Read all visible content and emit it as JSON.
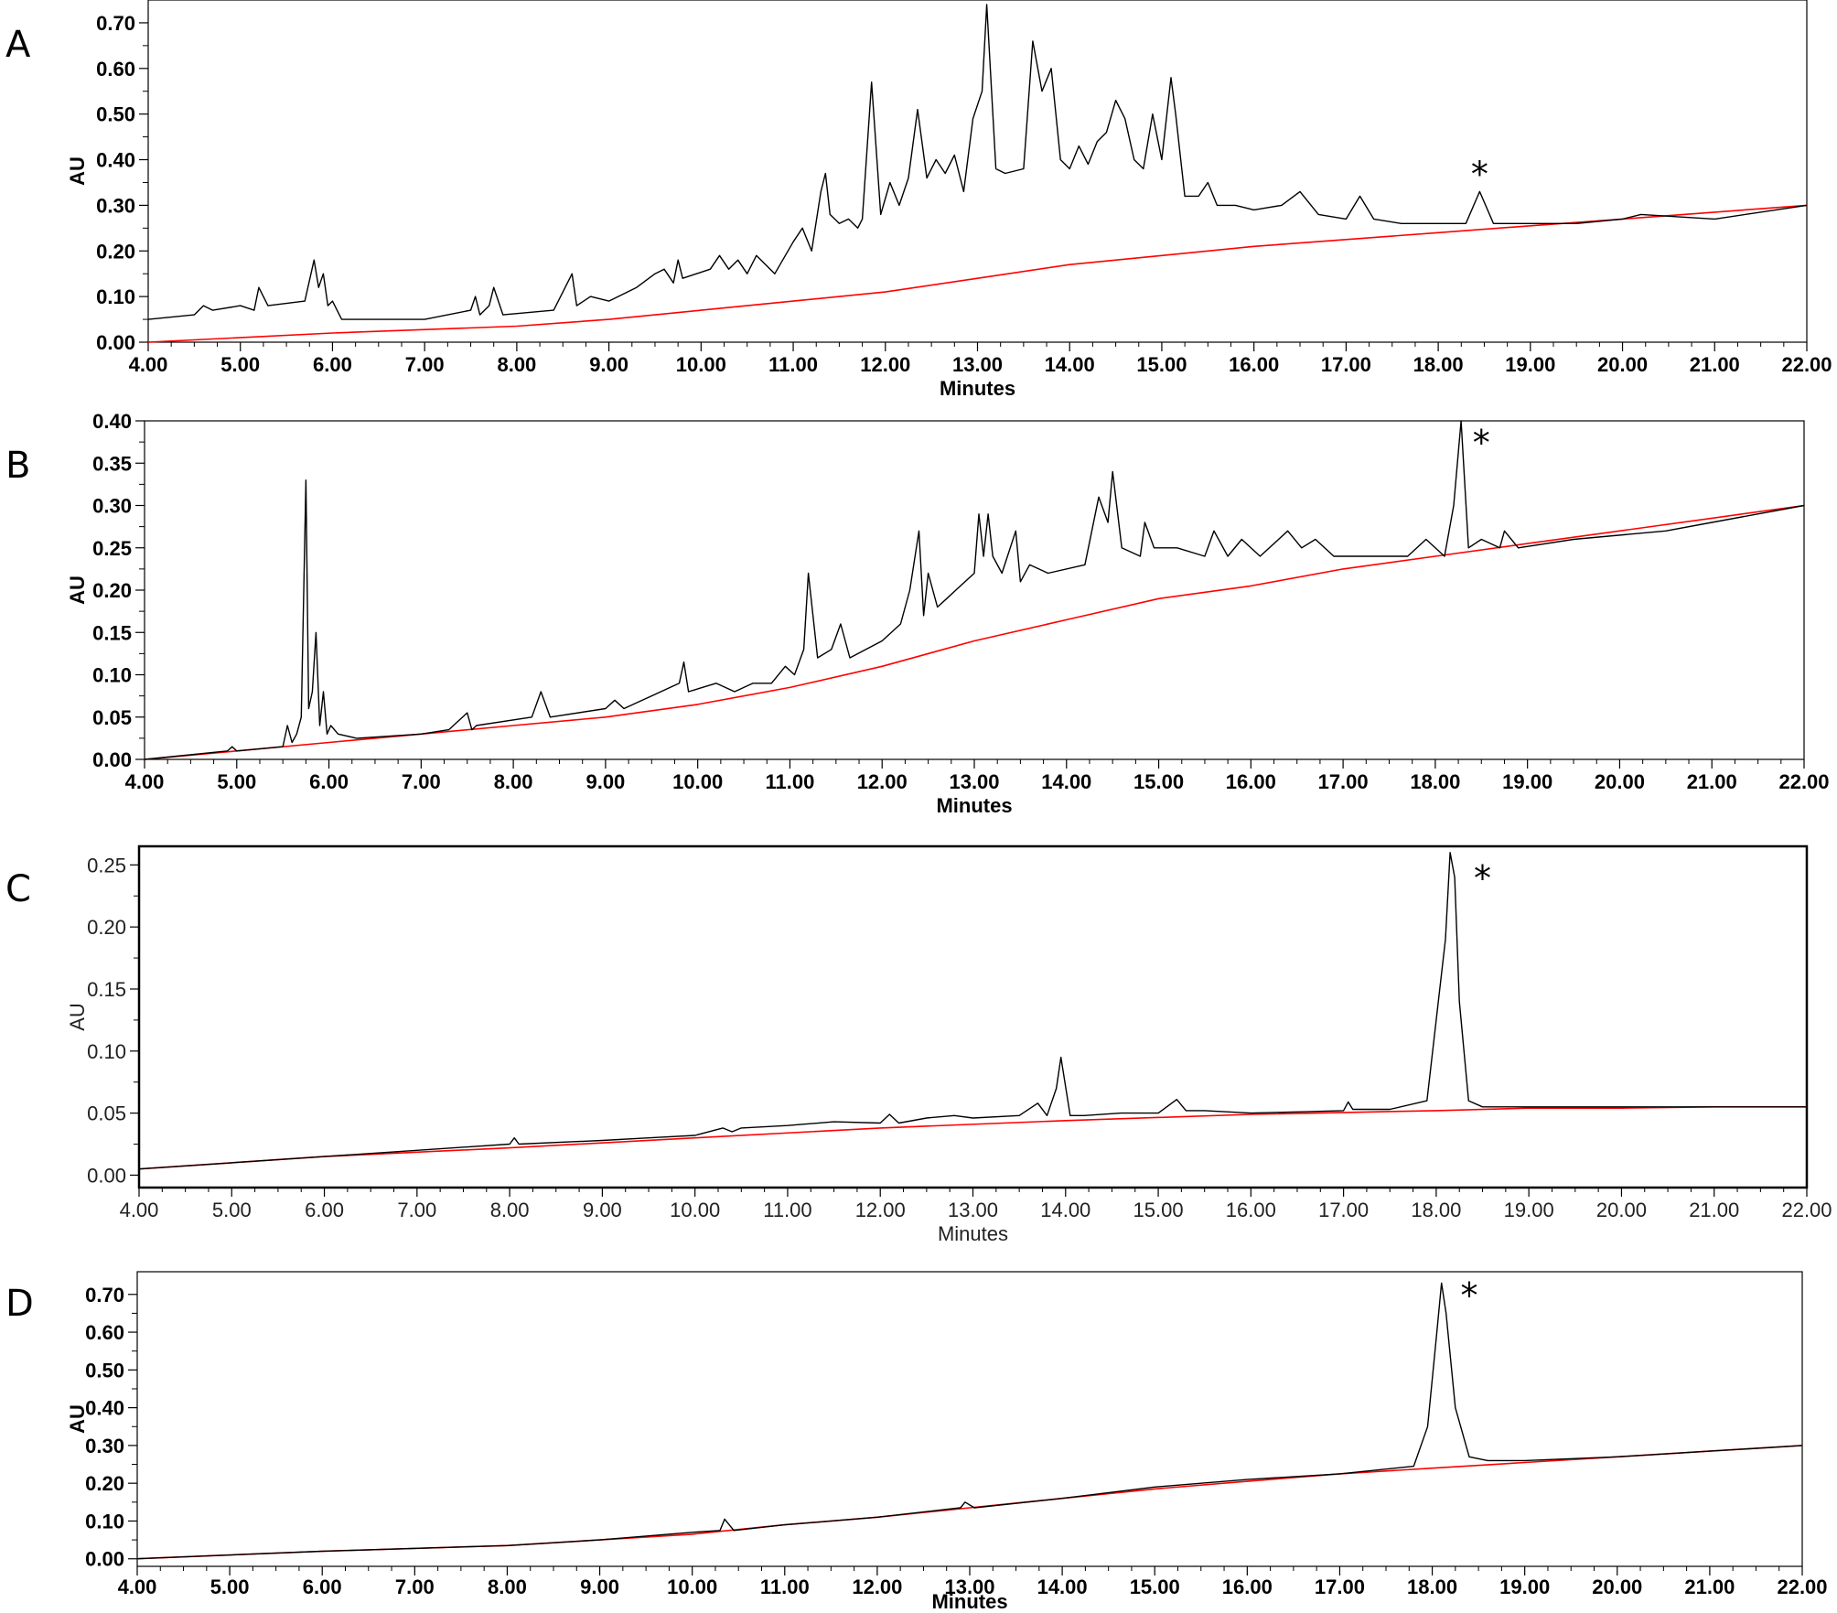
{
  "chart_data": [
    {
      "type": "line",
      "panel": "A",
      "xlabel": "Minutes",
      "ylabel": "AU",
      "xlim": [
        4.0,
        22.0
      ],
      "ylim": [
        0.0,
        0.75
      ],
      "xticks": [
        "4.00",
        "5.00",
        "6.00",
        "7.00",
        "8.00",
        "9.00",
        "10.00",
        "11.00",
        "12.00",
        "13.00",
        "14.00",
        "15.00",
        "16.00",
        "17.00",
        "18.00",
        "19.00",
        "20.00",
        "21.00",
        "22.00"
      ],
      "yticks": [
        "0.00",
        "0.10",
        "0.20",
        "0.30",
        "0.40",
        "0.50",
        "0.60",
        "0.70"
      ],
      "annotation": {
        "text": "*",
        "x": 18.45,
        "y": 0.37
      },
      "colors": {
        "trace": "#000000",
        "baseline": "#ff0000"
      },
      "series": [
        {
          "x": [
            4.0,
            4.5,
            4.6,
            4.7,
            5.0,
            5.15,
            5.2,
            5.3,
            5.7,
            5.8,
            5.85,
            5.9,
            5.95,
            6.0,
            6.1,
            6.2,
            7.0,
            7.5,
            7.55,
            7.6,
            7.7,
            7.75,
            7.85,
            8.4,
            8.5,
            8.6,
            8.65,
            8.8,
            9.0,
            9.3,
            9.5,
            9.6,
            9.7,
            9.75,
            9.8,
            10.1,
            10.2,
            10.3,
            10.4,
            10.5,
            10.6,
            10.8,
            11.0,
            11.1,
            11.2,
            11.3,
            11.35,
            11.4,
            11.5,
            11.6,
            11.7,
            11.75,
            11.85,
            11.95,
            12.05,
            12.15,
            12.25,
            12.35,
            12.45,
            12.55,
            12.65,
            12.75,
            12.85,
            12.95,
            13.05,
            13.1,
            13.2,
            13.3,
            13.5,
            13.6,
            13.7,
            13.8,
            13.9,
            14.0,
            14.1,
            14.2,
            14.3,
            14.4,
            14.5,
            14.6,
            14.7,
            14.8,
            14.9,
            15.0,
            15.1,
            15.15,
            15.25,
            15.4,
            15.5,
            15.6,
            15.8,
            16.0,
            16.3,
            16.5,
            16.7,
            17.0,
            17.15,
            17.3,
            17.6,
            18.0,
            18.3,
            18.45,
            18.6,
            18.8,
            19.5,
            20.0,
            20.2,
            21.0,
            22.0
          ],
          "y": [
            0.05,
            0.06,
            0.08,
            0.07,
            0.08,
            0.07,
            0.12,
            0.08,
            0.09,
            0.18,
            0.12,
            0.15,
            0.08,
            0.09,
            0.05,
            0.05,
            0.05,
            0.07,
            0.1,
            0.06,
            0.08,
            0.12,
            0.06,
            0.07,
            0.11,
            0.15,
            0.08,
            0.1,
            0.09,
            0.12,
            0.15,
            0.16,
            0.13,
            0.18,
            0.14,
            0.16,
            0.19,
            0.16,
            0.18,
            0.15,
            0.19,
            0.15,
            0.22,
            0.25,
            0.2,
            0.33,
            0.37,
            0.28,
            0.26,
            0.27,
            0.25,
            0.27,
            0.57,
            0.28,
            0.35,
            0.3,
            0.36,
            0.51,
            0.36,
            0.4,
            0.37,
            0.41,
            0.33,
            0.49,
            0.55,
            0.74,
            0.38,
            0.37,
            0.38,
            0.66,
            0.55,
            0.6,
            0.4,
            0.38,
            0.43,
            0.39,
            0.44,
            0.46,
            0.53,
            0.49,
            0.4,
            0.38,
            0.5,
            0.4,
            0.58,
            0.5,
            0.32,
            0.32,
            0.35,
            0.3,
            0.3,
            0.29,
            0.3,
            0.33,
            0.28,
            0.27,
            0.32,
            0.27,
            0.26,
            0.26,
            0.26,
            0.33,
            0.26,
            0.26,
            0.26,
            0.27,
            0.28,
            0.27,
            0.3
          ]
        },
        {
          "x": [
            4.0,
            6.0,
            8.0,
            9.0,
            10.0,
            11.0,
            12.0,
            13.0,
            14.0,
            15.0,
            16.0,
            17.0,
            18.0,
            19.0,
            20.0,
            21.0,
            22.0
          ],
          "y": [
            0.0,
            0.02,
            0.035,
            0.05,
            0.07,
            0.09,
            0.11,
            0.14,
            0.17,
            0.19,
            0.21,
            0.225,
            0.24,
            0.255,
            0.27,
            0.285,
            0.3
          ]
        }
      ]
    },
    {
      "type": "line",
      "panel": "B",
      "xlabel": "Minutes",
      "ylabel": "AU",
      "xlim": [
        4.0,
        22.0
      ],
      "ylim": [
        0.0,
        0.4
      ],
      "xticks": [
        "4.00",
        "5.00",
        "6.00",
        "7.00",
        "8.00",
        "9.00",
        "10.00",
        "11.00",
        "12.00",
        "13.00",
        "14.00",
        "15.00",
        "16.00",
        "17.00",
        "18.00",
        "19.00",
        "20.00",
        "21.00",
        "22.00"
      ],
      "yticks": [
        "0.00",
        "0.05",
        "0.10",
        "0.15",
        "0.20",
        "0.25",
        "0.30",
        "0.35",
        "0.40"
      ],
      "annotation": {
        "text": "*",
        "x": 18.5,
        "y": 0.375
      },
      "colors": {
        "trace": "#000000",
        "baseline": "#ff0000"
      },
      "series": [
        {
          "x": [
            4.0,
            4.9,
            4.95,
            5.0,
            5.5,
            5.55,
            5.6,
            5.65,
            5.7,
            5.75,
            5.78,
            5.82,
            5.86,
            5.9,
            5.94,
            5.98,
            6.02,
            6.1,
            6.3,
            7.0,
            7.3,
            7.5,
            7.55,
            7.6,
            8.2,
            8.3,
            8.4,
            9.0,
            9.1,
            9.2,
            9.4,
            9.8,
            9.85,
            9.9,
            10.2,
            10.4,
            10.6,
            10.8,
            10.95,
            11.05,
            11.15,
            11.2,
            11.3,
            11.45,
            11.55,
            11.65,
            12.0,
            12.2,
            12.3,
            12.4,
            12.45,
            12.5,
            12.6,
            12.7,
            12.8,
            13.0,
            13.05,
            13.1,
            13.15,
            13.2,
            13.3,
            13.45,
            13.5,
            13.6,
            13.8,
            14.2,
            14.35,
            14.45,
            14.5,
            14.6,
            14.8,
            14.85,
            14.95,
            15.2,
            15.5,
            15.6,
            15.75,
            15.9,
            16.1,
            16.3,
            16.4,
            16.55,
            16.7,
            16.9,
            17.3,
            17.7,
            17.9,
            18.1,
            18.2,
            18.28,
            18.36,
            18.5,
            18.7,
            18.75,
            18.9,
            19.5,
            20.5,
            21.0,
            22.0
          ],
          "y": [
            0.0,
            0.01,
            0.015,
            0.01,
            0.015,
            0.04,
            0.02,
            0.03,
            0.05,
            0.33,
            0.06,
            0.08,
            0.15,
            0.04,
            0.08,
            0.03,
            0.04,
            0.03,
            0.025,
            0.03,
            0.035,
            0.055,
            0.035,
            0.04,
            0.05,
            0.08,
            0.05,
            0.06,
            0.07,
            0.06,
            0.07,
            0.09,
            0.115,
            0.08,
            0.09,
            0.08,
            0.09,
            0.09,
            0.11,
            0.1,
            0.13,
            0.22,
            0.12,
            0.13,
            0.16,
            0.12,
            0.14,
            0.16,
            0.2,
            0.27,
            0.17,
            0.22,
            0.18,
            0.19,
            0.2,
            0.22,
            0.29,
            0.24,
            0.29,
            0.24,
            0.22,
            0.27,
            0.21,
            0.23,
            0.22,
            0.23,
            0.31,
            0.28,
            0.34,
            0.25,
            0.24,
            0.28,
            0.25,
            0.25,
            0.24,
            0.27,
            0.24,
            0.26,
            0.24,
            0.26,
            0.27,
            0.25,
            0.26,
            0.24,
            0.24,
            0.24,
            0.26,
            0.24,
            0.3,
            0.4,
            0.25,
            0.26,
            0.25,
            0.27,
            0.25,
            0.26,
            0.27,
            0.28,
            0.3
          ]
        },
        {
          "x": [
            4.0,
            5.0,
            6.0,
            7.0,
            8.0,
            9.0,
            10.0,
            11.0,
            12.0,
            13.0,
            14.0,
            15.0,
            16.0,
            17.0,
            18.0,
            19.0,
            20.0,
            21.0,
            22.0
          ],
          "y": [
            0.0,
            0.01,
            0.02,
            0.03,
            0.04,
            0.05,
            0.065,
            0.085,
            0.11,
            0.14,
            0.165,
            0.19,
            0.205,
            0.225,
            0.24,
            0.255,
            0.27,
            0.285,
            0.3
          ]
        }
      ]
    },
    {
      "type": "line",
      "panel": "C",
      "xlabel": "Minutes",
      "ylabel": "AU",
      "xlim": [
        4.0,
        22.0
      ],
      "ylim": [
        -0.01,
        0.265
      ],
      "xticks": [
        "4.00",
        "5.00",
        "6.00",
        "7.00",
        "8.00",
        "9.00",
        "10.00",
        "11.00",
        "12.00",
        "13.00",
        "14.00",
        "15.00",
        "16.00",
        "17.00",
        "18.00",
        "19.00",
        "20.00",
        "21.00",
        "22.00"
      ],
      "yticks": [
        "0.00",
        "0.05",
        "0.10",
        "0.15",
        "0.20",
        "0.25"
      ],
      "annotation": {
        "text": "*",
        "x": 18.5,
        "y": 0.24
      },
      "colors": {
        "trace": "#000000",
        "baseline": "#ff0000"
      },
      "series": [
        {
          "x": [
            4.0,
            5.0,
            6.0,
            7.0,
            8.0,
            8.05,
            8.1,
            9.0,
            9.5,
            10.0,
            10.3,
            10.4,
            10.5,
            11.0,
            11.5,
            12.0,
            12.1,
            12.2,
            12.5,
            12.8,
            13.0,
            13.5,
            13.7,
            13.8,
            13.9,
            13.95,
            14.05,
            14.2,
            14.6,
            15.0,
            15.2,
            15.3,
            15.5,
            16.0,
            16.5,
            17.0,
            17.05,
            17.1,
            17.5,
            17.9,
            18.1,
            18.15,
            18.2,
            18.25,
            18.35,
            18.5,
            19.0,
            20.0,
            21.0,
            22.0
          ],
          "y": [
            0.005,
            0.01,
            0.015,
            0.02,
            0.025,
            0.03,
            0.025,
            0.028,
            0.03,
            0.032,
            0.038,
            0.035,
            0.038,
            0.04,
            0.043,
            0.042,
            0.049,
            0.042,
            0.046,
            0.048,
            0.046,
            0.048,
            0.058,
            0.048,
            0.07,
            0.095,
            0.048,
            0.048,
            0.05,
            0.05,
            0.061,
            0.052,
            0.052,
            0.05,
            0.051,
            0.052,
            0.059,
            0.053,
            0.053,
            0.06,
            0.19,
            0.26,
            0.24,
            0.14,
            0.06,
            0.055,
            0.055,
            0.055,
            0.055,
            0.055
          ]
        },
        {
          "x": [
            4.0,
            6.0,
            8.0,
            10.0,
            12.0,
            14.0,
            16.0,
            18.0,
            19.0,
            20.0,
            21.0,
            22.0
          ],
          "y": [
            0.005,
            0.015,
            0.022,
            0.03,
            0.038,
            0.044,
            0.049,
            0.052,
            0.054,
            0.054,
            0.055,
            0.055
          ]
        }
      ]
    },
    {
      "type": "line",
      "panel": "D",
      "xlabel": "Minutes",
      "ylabel": "AU",
      "xlim": [
        4.0,
        22.0
      ],
      "ylim": [
        -0.02,
        0.76
      ],
      "xticks": [
        "4.00",
        "5.00",
        "6.00",
        "7.00",
        "8.00",
        "9.00",
        "10.00",
        "11.00",
        "12.00",
        "13.00",
        "14.00",
        "15.00",
        "16.00",
        "17.00",
        "18.00",
        "19.00",
        "20.00",
        "21.00",
        "22.00"
      ],
      "yticks": [
        "0.00",
        "0.10",
        "0.20",
        "0.30",
        "0.40",
        "0.50",
        "0.60",
        "0.70"
      ],
      "annotation": {
        "text": "*",
        "x": 18.4,
        "y": 0.7
      },
      "colors": {
        "trace": "#000000",
        "baseline": "#ff0000"
      },
      "series": [
        {
          "x": [
            4.0,
            6.0,
            8.0,
            9.0,
            10.0,
            10.3,
            10.35,
            10.45,
            11.0,
            12.0,
            12.9,
            12.95,
            13.05,
            14.0,
            15.0,
            16.0,
            17.0,
            17.6,
            17.8,
            17.95,
            18.05,
            18.1,
            18.15,
            18.25,
            18.4,
            18.6,
            19.0,
            20.0,
            21.0,
            22.0
          ],
          "y": [
            0.0,
            0.02,
            0.035,
            0.05,
            0.07,
            0.075,
            0.105,
            0.075,
            0.09,
            0.11,
            0.135,
            0.15,
            0.135,
            0.16,
            0.19,
            0.21,
            0.225,
            0.24,
            0.245,
            0.35,
            0.6,
            0.73,
            0.65,
            0.4,
            0.27,
            0.26,
            0.26,
            0.27,
            0.285,
            0.3
          ]
        },
        {
          "x": [
            4.0,
            6.0,
            8.0,
            9.0,
            10.0,
            11.0,
            12.0,
            13.0,
            14.0,
            15.0,
            16.0,
            17.0,
            18.0,
            19.0,
            20.0,
            21.0,
            22.0
          ],
          "y": [
            0.0,
            0.02,
            0.035,
            0.05,
            0.065,
            0.09,
            0.11,
            0.135,
            0.16,
            0.185,
            0.205,
            0.225,
            0.24,
            0.255,
            0.27,
            0.285,
            0.3
          ]
        }
      ]
    }
  ]
}
